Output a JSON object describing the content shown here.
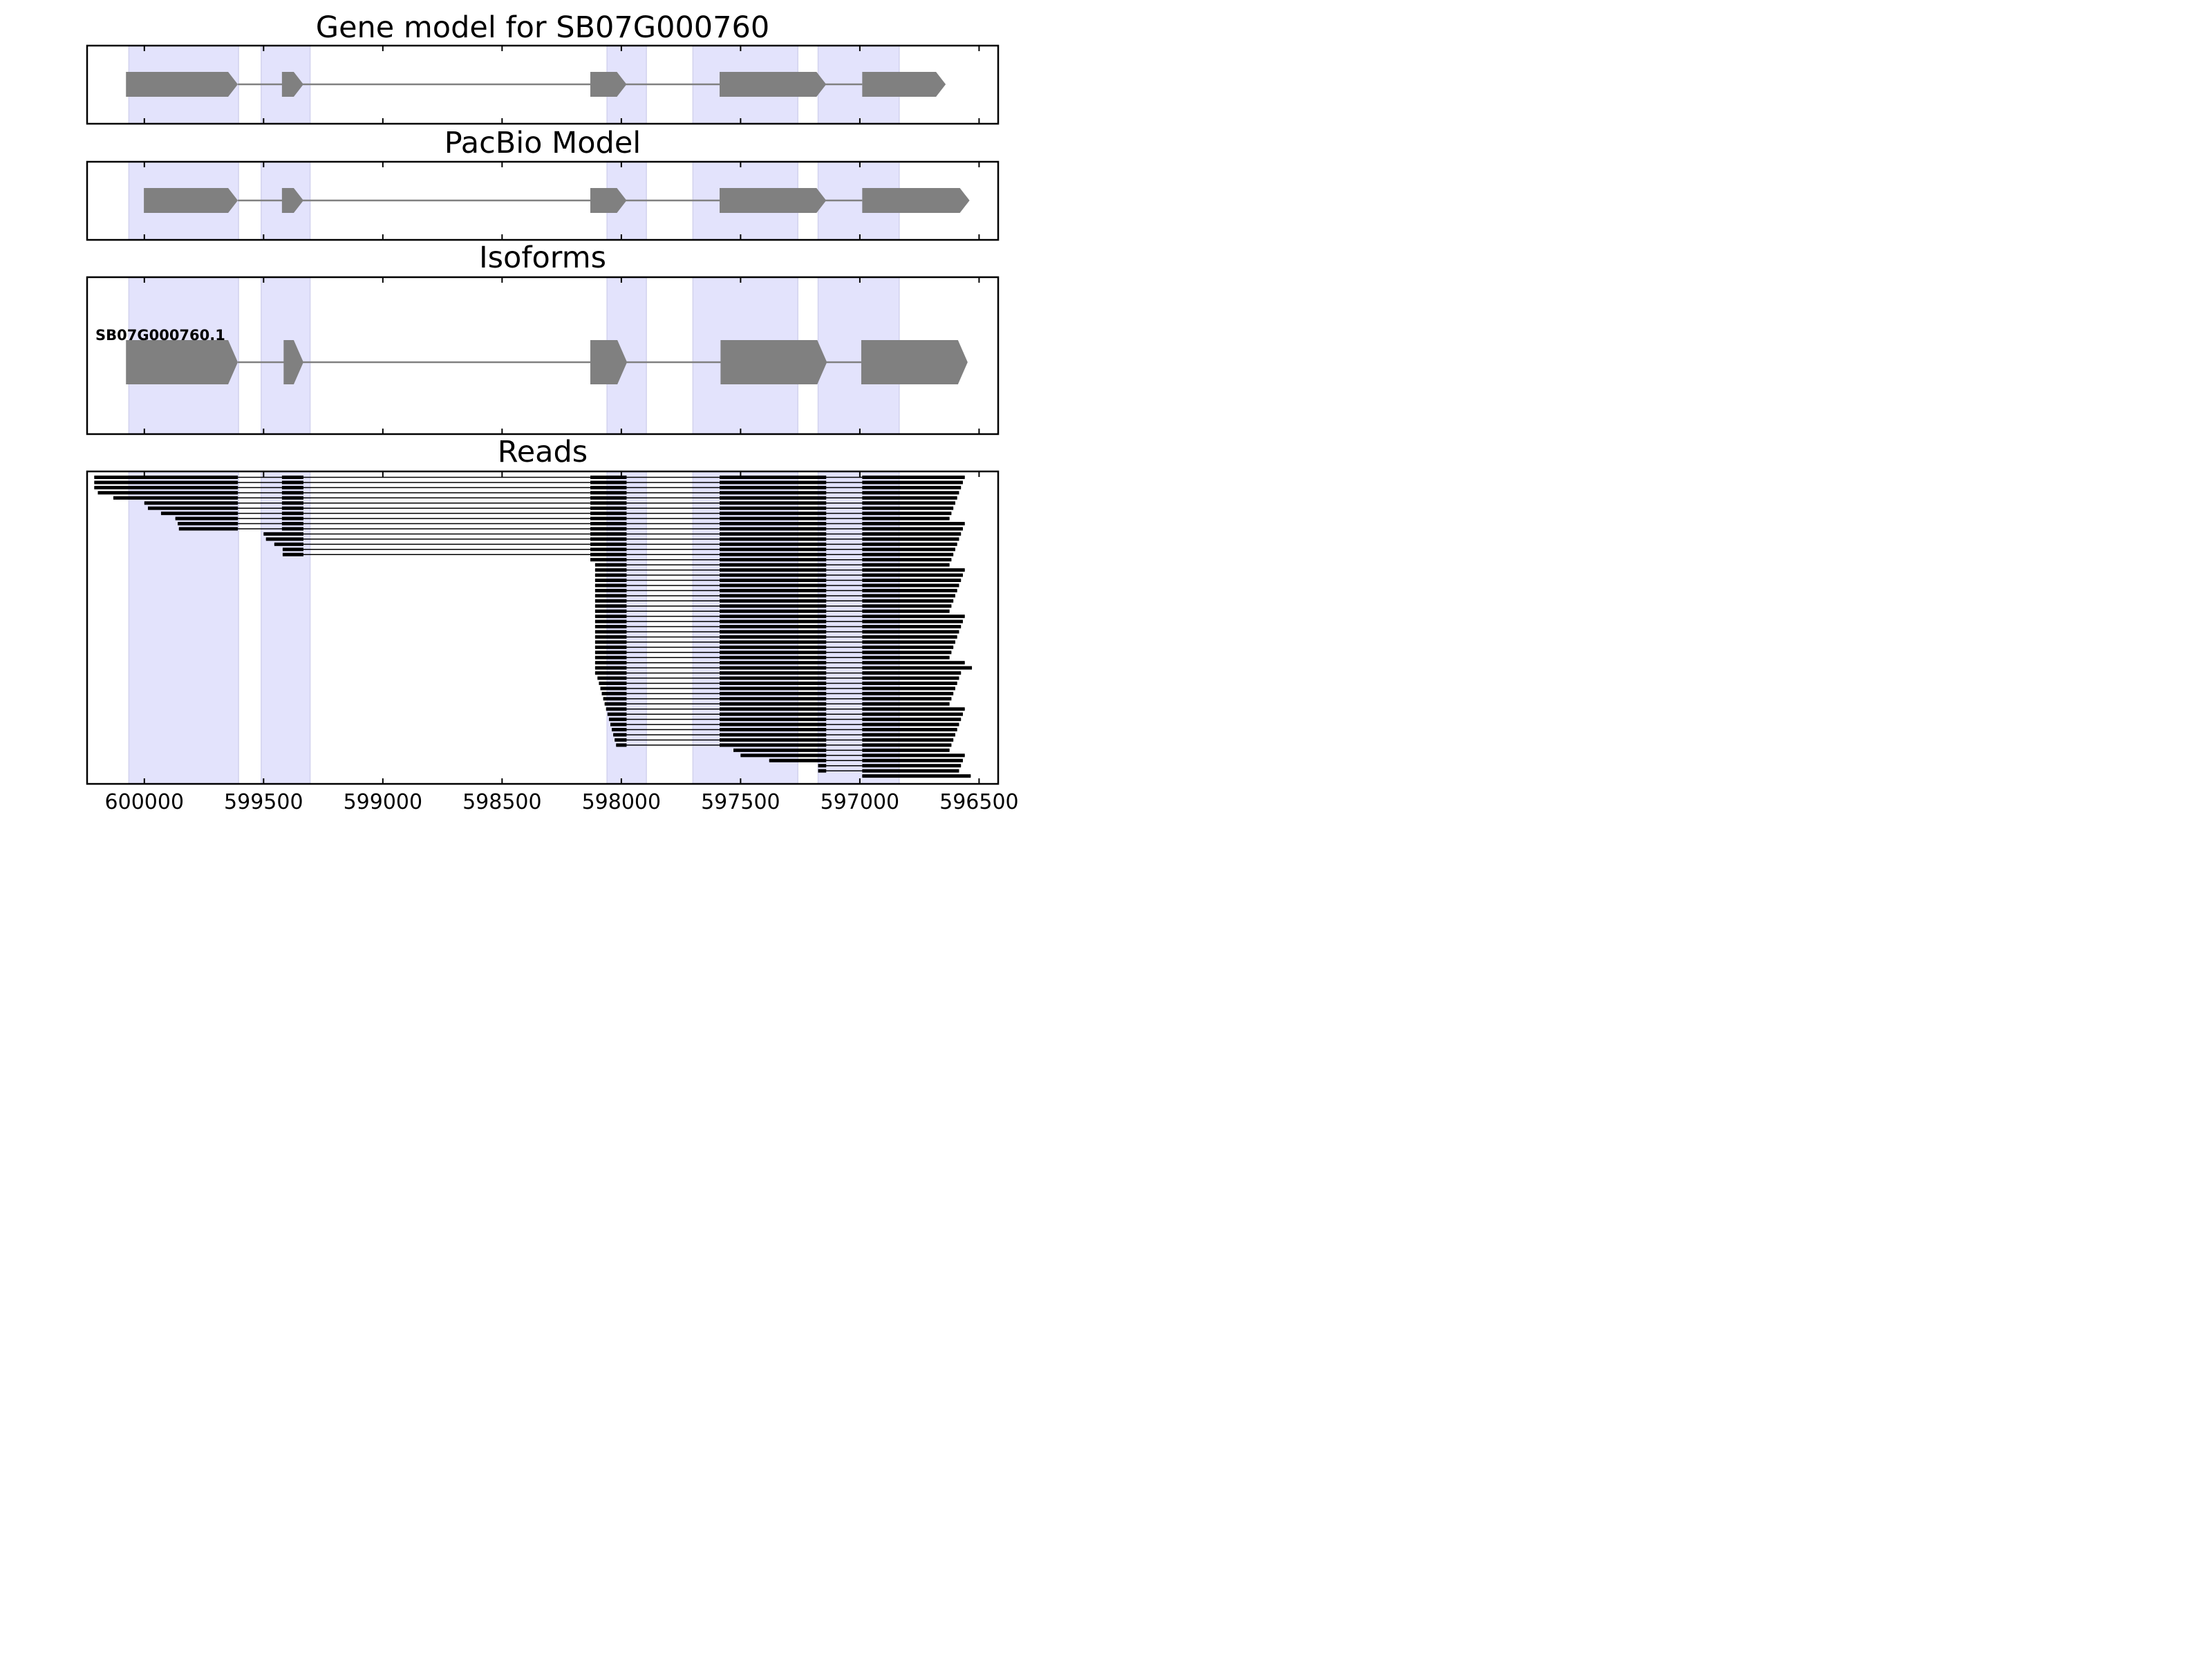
{
  "chart_data": [
    {
      "type": "gene-model",
      "title": "Gene model for SB07G000760",
      "exons": [
        [
          600077,
          599608
        ],
        [
          599423,
          599333
        ],
        [
          598130,
          597978
        ],
        [
          597588,
          597141
        ],
        [
          596990,
          596640
        ]
      ],
      "strand": "-"
    },
    {
      "type": "gene-model",
      "title": "PacBio Model",
      "exons": [
        [
          600002,
          599608
        ],
        [
          599423,
          599333
        ],
        [
          598130,
          597978
        ],
        [
          597588,
          597141
        ],
        [
          596990,
          596540
        ]
      ],
      "strand": "-"
    },
    {
      "type": "gene-model",
      "title": "Isoforms",
      "isoforms": [
        {
          "label": "SB07G000760.1",
          "exons": [
            [
              600077,
              599608
            ],
            [
              599416,
              599333
            ],
            [
              598130,
              597976
            ],
            [
              597584,
              597138
            ],
            [
              596994,
              596548
            ]
          ]
        }
      ]
    },
    {
      "type": "reads",
      "title": "Reads",
      "xlim": [
        600240,
        596420
      ],
      "xticks": [
        "600000",
        "599500",
        "599000",
        "598500",
        "598000",
        "597500",
        "597000",
        "596500"
      ]
    }
  ],
  "highlight_regions": [
    [
      600065,
      599605
    ],
    [
      599510,
      599305
    ],
    [
      598060,
      597895
    ],
    [
      597700,
      597260
    ],
    [
      597175,
      596835
    ]
  ],
  "highlight_color": "#e3e3fc",
  "feature_color": "#808080",
  "read_color": "#000000"
}
